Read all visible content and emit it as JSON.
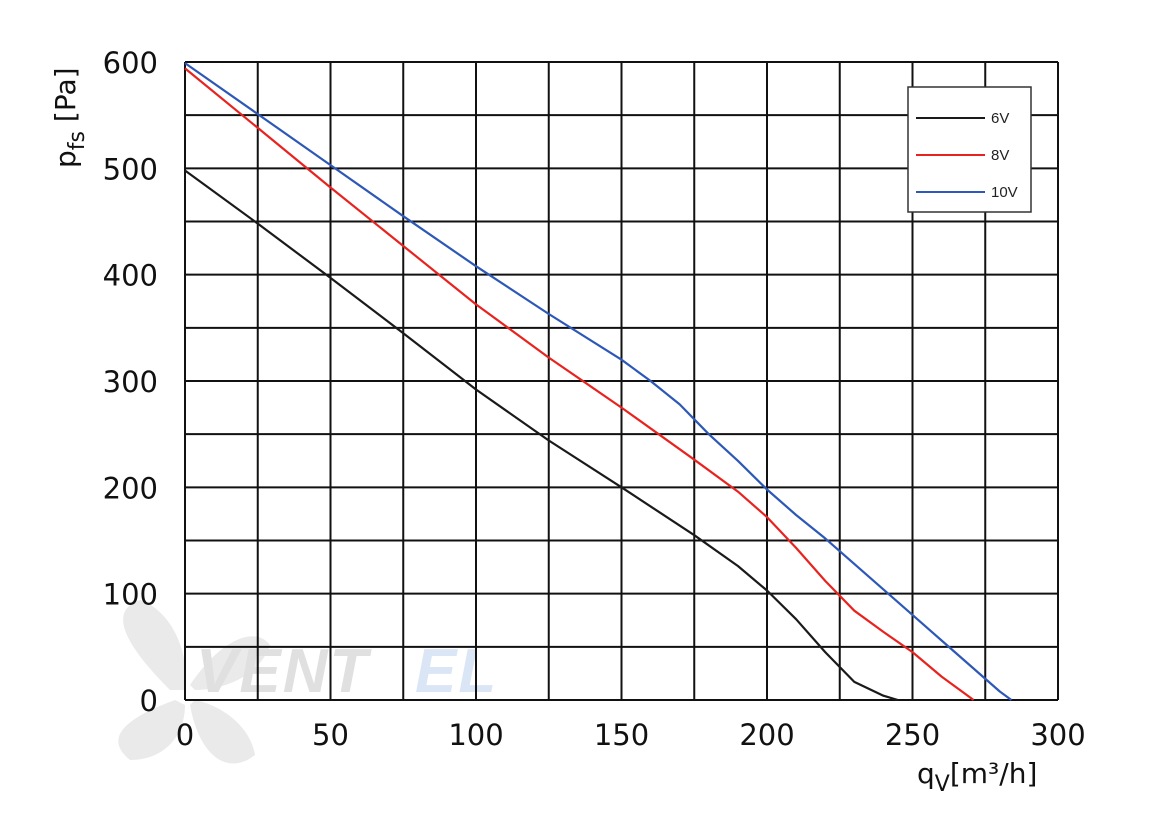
{
  "watermark": {
    "part1": "VENT",
    "part2": "EL",
    "color1": "#c8c8c8",
    "color2": "#bcd3ee"
  },
  "chart_data": {
    "type": "line",
    "ylabel": {
      "main": "p",
      "sub": "fs",
      "unit": " [Pa]"
    },
    "xlabel": {
      "main": "q",
      "sub": "V",
      "unit": "[m³/h]"
    },
    "xlim": [
      0,
      300
    ],
    "ylim": [
      0,
      600
    ],
    "x_ticks": [
      0,
      50,
      100,
      150,
      200,
      250,
      300
    ],
    "y_ticks": [
      0,
      100,
      200,
      300,
      400,
      500,
      600
    ],
    "x_minor_step": 25,
    "y_minor_step": 50,
    "grid": true,
    "legend_position": "top-right",
    "series": [
      {
        "name": "6V",
        "color": "#1a1a1a",
        "points": [
          [
            0,
            498
          ],
          [
            25,
            448
          ],
          [
            50,
            397
          ],
          [
            75,
            345
          ],
          [
            100,
            292
          ],
          [
            125,
            244
          ],
          [
            150,
            200
          ],
          [
            175,
            155
          ],
          [
            190,
            126
          ],
          [
            200,
            103
          ],
          [
            210,
            76
          ],
          [
            220,
            45
          ],
          [
            230,
            17
          ],
          [
            240,
            4
          ],
          [
            245,
            0
          ]
        ]
      },
      {
        "name": "8V",
        "color": "#e8231f",
        "points": [
          [
            0,
            594
          ],
          [
            25,
            538
          ],
          [
            50,
            482
          ],
          [
            75,
            427
          ],
          [
            100,
            372
          ],
          [
            125,
            322
          ],
          [
            150,
            275
          ],
          [
            175,
            226
          ],
          [
            190,
            196
          ],
          [
            200,
            172
          ],
          [
            210,
            143
          ],
          [
            220,
            112
          ],
          [
            230,
            84
          ],
          [
            240,
            64
          ],
          [
            250,
            45
          ],
          [
            260,
            22
          ],
          [
            270,
            2
          ],
          [
            271,
            0
          ]
        ]
      },
      {
        "name": "10V",
        "color": "#2d58b8",
        "points": [
          [
            0,
            599
          ],
          [
            25,
            551
          ],
          [
            50,
            503
          ],
          [
            75,
            455
          ],
          [
            100,
            408
          ],
          [
            125,
            363
          ],
          [
            150,
            320
          ],
          [
            160,
            300
          ],
          [
            170,
            278
          ],
          [
            180,
            250
          ],
          [
            190,
            225
          ],
          [
            200,
            198
          ],
          [
            210,
            174
          ],
          [
            220,
            152
          ],
          [
            230,
            128
          ],
          [
            240,
            104
          ],
          [
            250,
            80
          ],
          [
            260,
            56
          ],
          [
            270,
            32
          ],
          [
            280,
            8
          ],
          [
            284,
            0
          ]
        ]
      }
    ]
  }
}
